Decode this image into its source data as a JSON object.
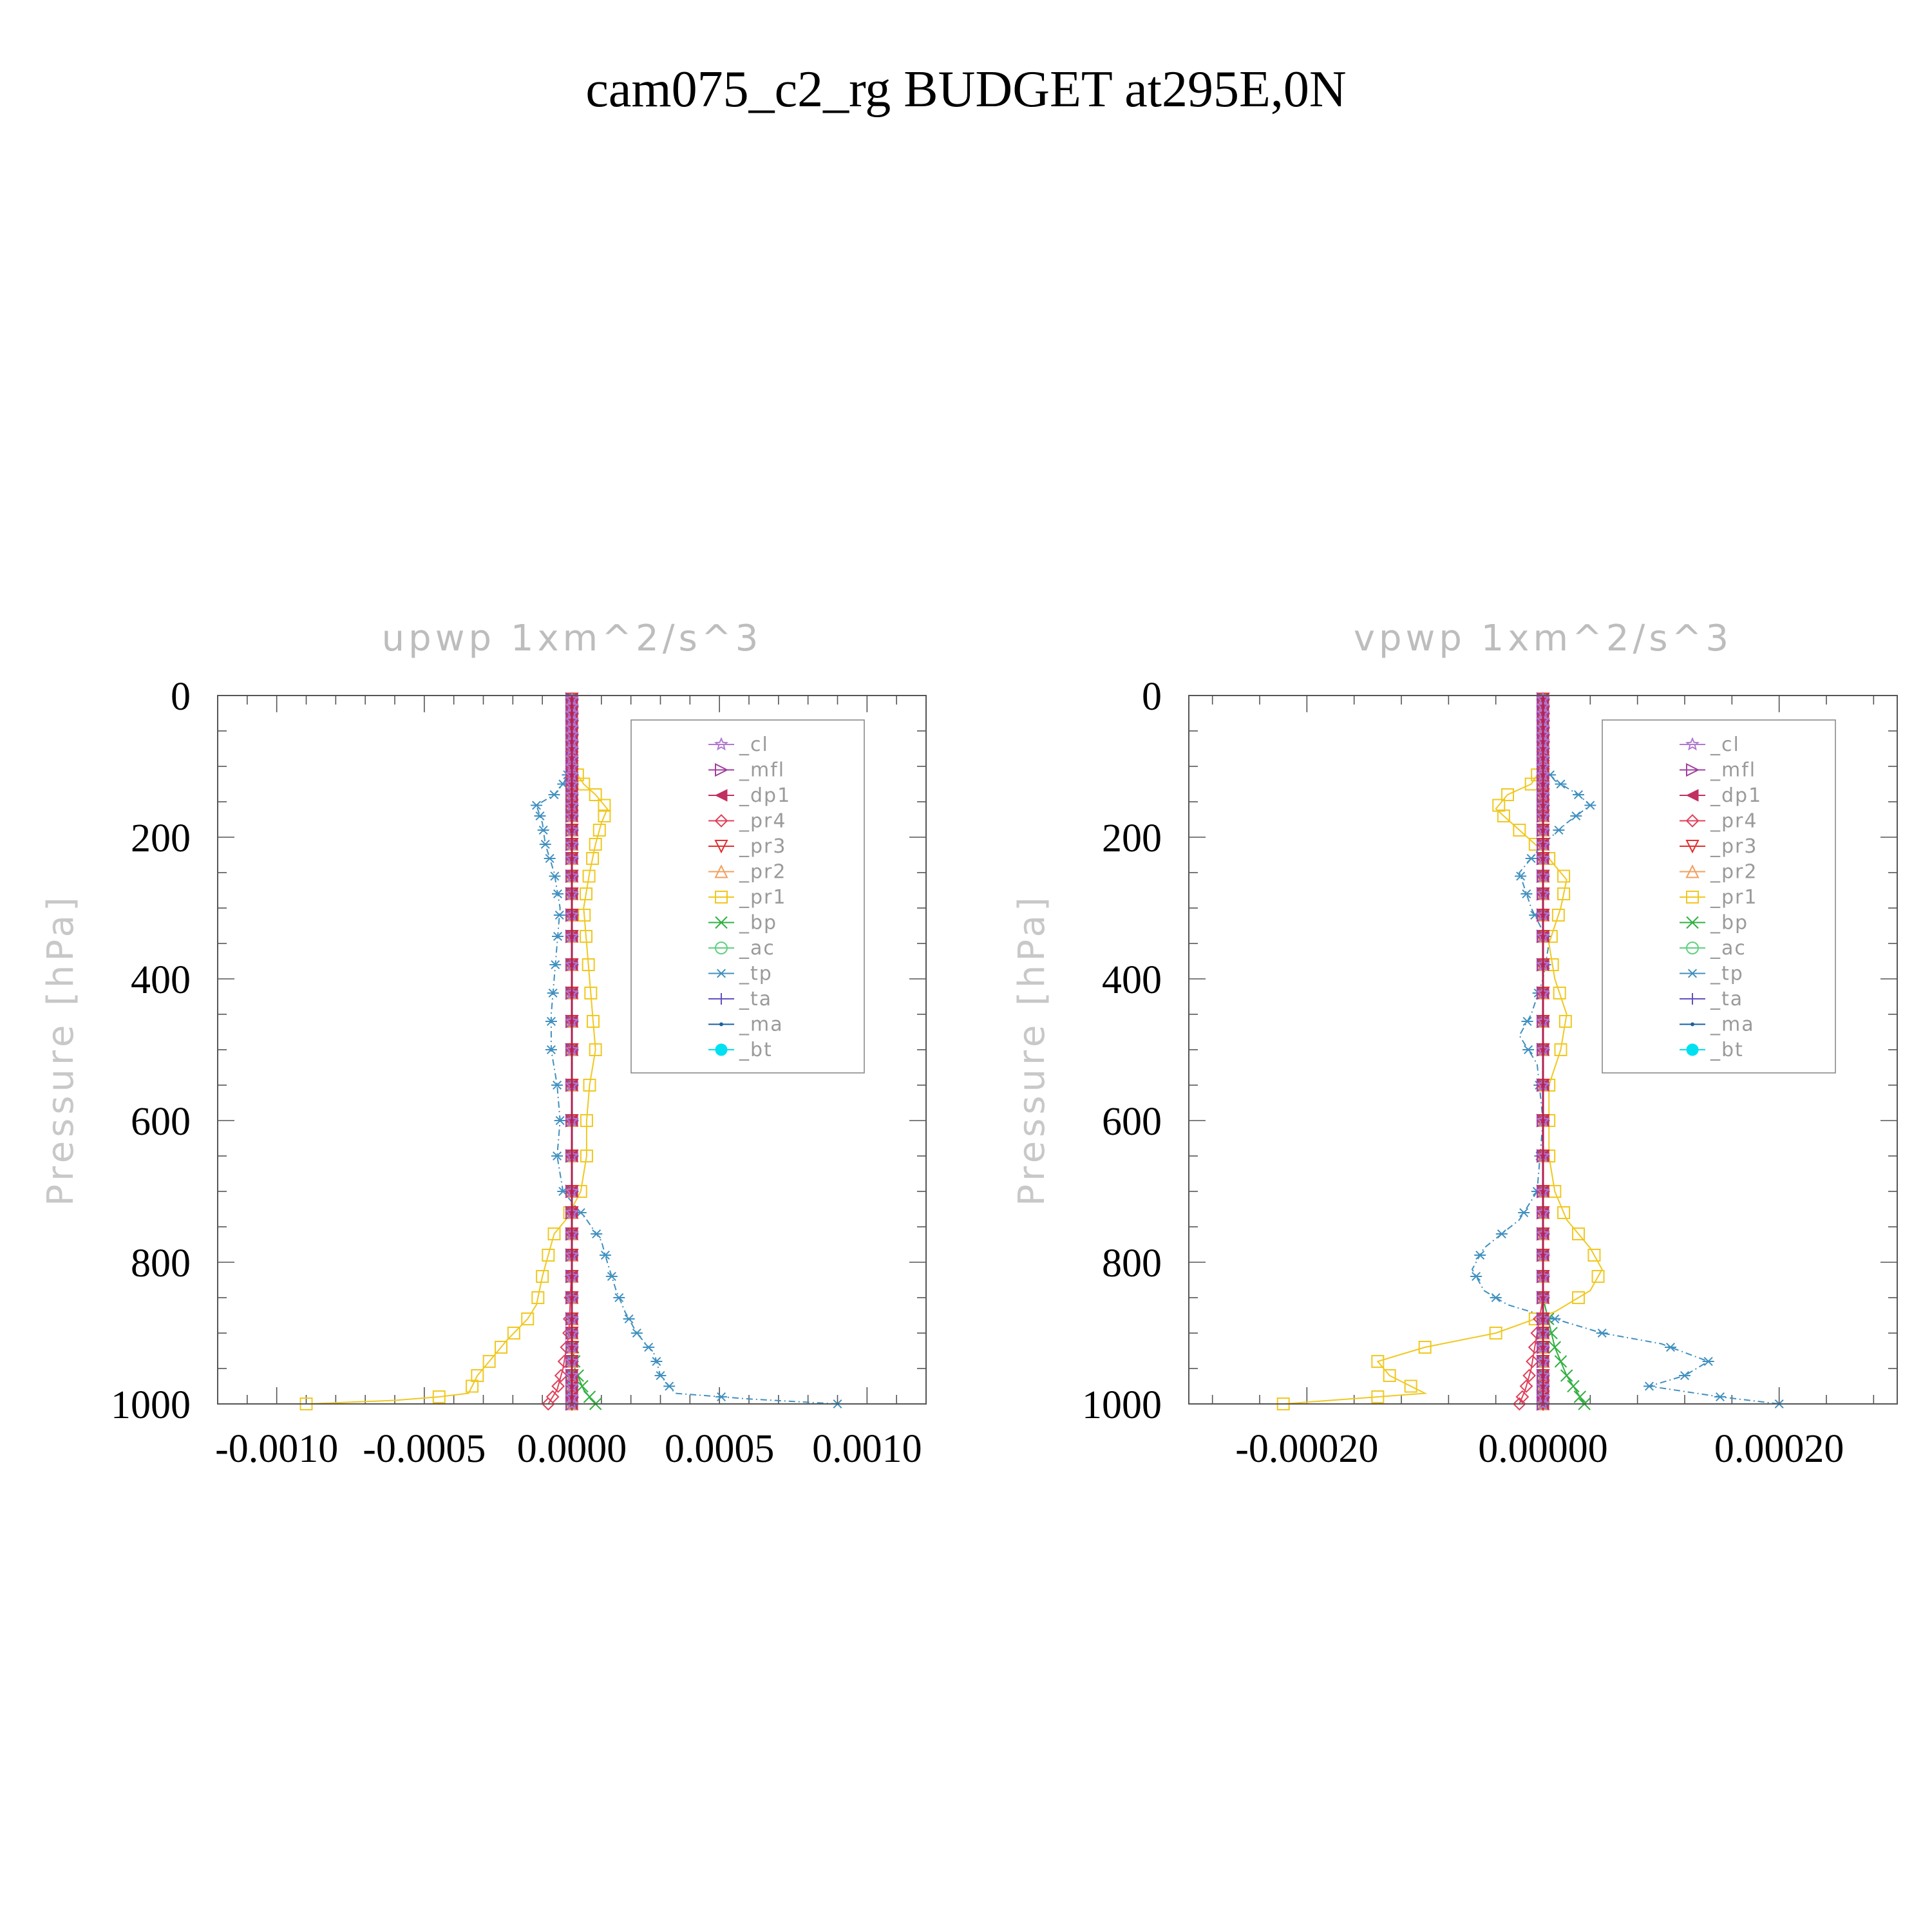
{
  "figure_title": "cam075_c2_rg  BUDGET at295E,0N",
  "chart_data": [
    {
      "type": "line",
      "title": "upwp   1xm^2/s^3",
      "xlabel": "",
      "ylabel": "Pressure  [hPa]",
      "xlim": [
        -0.0012,
        0.0012
      ],
      "ylim": [
        1000,
        0
      ],
      "xticks": [
        -0.001,
        -0.0005,
        0.0,
        0.0005,
        0.001
      ],
      "xtick_labels": [
        "-0.0010",
        "-0.0005",
        "0.0000",
        "0.0005",
        "0.0010"
      ],
      "yticks": [
        0,
        200,
        400,
        600,
        800,
        1000
      ],
      "ytick_labels": [
        "0",
        "200",
        "400",
        "600",
        "800",
        "1000"
      ],
      "grid": false,
      "legend_position": "top-right",
      "series": [
        {
          "name": "_cl",
          "color": "#b07ad0",
          "marker": "star",
          "points": [
            [
              0,
              0
            ],
            [
              0,
              1000
            ]
          ]
        },
        {
          "name": "_mfl",
          "color": "#a040a0",
          "marker": "triangle-right",
          "points": [
            [
              0,
              0
            ],
            [
              0,
              1000
            ]
          ]
        },
        {
          "name": "_dp1",
          "color": "#c03060",
          "marker": "triangle-left",
          "points": [
            [
              0,
              0
            ],
            [
              0,
              1000
            ]
          ]
        },
        {
          "name": "_pr4",
          "color": "#e0405a",
          "marker": "diamond",
          "points": [
            [
              0,
              0
            ],
            [
              0,
              800
            ],
            [
              -1e-05,
              900
            ],
            [
              -3e-05,
              950
            ],
            [
              -5e-05,
              980
            ],
            [
              -8e-05,
              1000
            ]
          ]
        },
        {
          "name": "_pr3",
          "color": "#e03030",
          "marker": "triangle-down",
          "points": [
            [
              0,
              0
            ],
            [
              0,
              1000
            ]
          ]
        },
        {
          "name": "_pr2",
          "color": "#f0a060",
          "marker": "triangle-up",
          "points": [
            [
              0,
              0
            ],
            [
              0,
              1000
            ]
          ]
        },
        {
          "name": "_pr1",
          "color": "#f0c820",
          "marker": "square",
          "points": [
            [
              0,
              100
            ],
            [
              4e-05,
              125
            ],
            [
              8e-05,
              140
            ],
            [
              0.00012,
              160
            ],
            [
              0.0001,
              180
            ],
            [
              8e-05,
              210
            ],
            [
              6e-05,
              250
            ],
            [
              4e-05,
              300
            ],
            [
              5e-05,
              350
            ],
            [
              6e-05,
              400
            ],
            [
              7e-05,
              450
            ],
            [
              8e-05,
              500
            ],
            [
              6e-05,
              550
            ],
            [
              5e-05,
              600
            ],
            [
              5e-05,
              650
            ],
            [
              3e-05,
              700
            ],
            [
              -2e-05,
              740
            ],
            [
              -6e-05,
              760
            ],
            [
              -8e-05,
              790
            ],
            [
              -0.0001,
              820
            ],
            [
              -0.00012,
              860
            ],
            [
              -0.00015,
              880
            ],
            [
              -0.00022,
              910
            ],
            [
              -0.00028,
              940
            ],
            [
              -0.00032,
              960
            ],
            [
              -0.00035,
              985
            ],
            [
              -0.00045,
              990
            ],
            [
              -0.0006,
              995
            ],
            [
              -0.0009,
              1000
            ]
          ]
        },
        {
          "name": "_bp",
          "color": "#30b040",
          "marker": "x",
          "points": [
            [
              0,
              0
            ],
            [
              0,
              900
            ],
            [
              1e-05,
              950
            ],
            [
              4e-05,
              980
            ],
            [
              8e-05,
              1000
            ]
          ]
        },
        {
          "name": "_ac",
          "color": "#60d080",
          "marker": "circle",
          "points": [
            [
              0,
              0
            ],
            [
              0,
              1000
            ]
          ]
        },
        {
          "name": "_tp",
          "color": "#4090c0",
          "marker": "asterisk",
          "points": [
            [
              0,
              100
            ],
            [
              -3e-05,
              125
            ],
            [
              -6e-05,
              140
            ],
            [
              -0.00012,
              155
            ],
            [
              -0.0001,
              180
            ],
            [
              -9e-05,
              210
            ],
            [
              -6e-05,
              250
            ],
            [
              -4e-05,
              300
            ],
            [
              -5e-05,
              350
            ],
            [
              -6e-05,
              400
            ],
            [
              -7e-05,
              450
            ],
            [
              -7e-05,
              500
            ],
            [
              -5e-05,
              550
            ],
            [
              -4e-05,
              600
            ],
            [
              -5e-05,
              650
            ],
            [
              -3e-05,
              700
            ],
            [
              5e-05,
              740
            ],
            [
              0.0001,
              770
            ],
            [
              0.00012,
              800
            ],
            [
              0.00015,
              840
            ],
            [
              0.00018,
              870
            ],
            [
              0.00022,
              900
            ],
            [
              0.00028,
              930
            ],
            [
              0.0003,
              960
            ],
            [
              0.00035,
              985
            ],
            [
              0.0006,
              993
            ],
            [
              0.0009,
              1000
            ]
          ]
        },
        {
          "name": "_ta",
          "color": "#6050c0",
          "marker": "plus",
          "points": [
            [
              0,
              0
            ],
            [
              0,
              1000
            ]
          ]
        },
        {
          "name": "_ma",
          "color": "#1a60a0",
          "marker": "dot",
          "points": [
            [
              0,
              0
            ],
            [
              0,
              1000
            ]
          ]
        },
        {
          "name": "_bt",
          "color": "#00e0f0",
          "marker": "filled-circle",
          "points": [
            [
              0,
              0
            ],
            [
              0,
              1000
            ]
          ]
        }
      ]
    },
    {
      "type": "line",
      "title": "vpwp   1xm^2/s^3",
      "xlabel": "",
      "ylabel": "Pressure  [hPa]",
      "xlim": [
        -0.0003,
        0.0003
      ],
      "ylim": [
        1000,
        0
      ],
      "xticks": [
        -0.0002,
        0.0,
        0.0002
      ],
      "xtick_labels": [
        "-0.00020",
        "0.00000",
        "0.00020"
      ],
      "yticks": [
        0,
        200,
        400,
        600,
        800,
        1000
      ],
      "ytick_labels": [
        "0",
        "200",
        "400",
        "600",
        "800",
        "1000"
      ],
      "grid": false,
      "legend_position": "top-right",
      "series": [
        {
          "name": "_cl",
          "color": "#b07ad0",
          "marker": "star",
          "points": [
            [
              0,
              0
            ],
            [
              0,
              1000
            ]
          ]
        },
        {
          "name": "_mfl",
          "color": "#a040a0",
          "marker": "triangle-right",
          "points": [
            [
              0,
              0
            ],
            [
              0,
              1000
            ]
          ]
        },
        {
          "name": "_dp1",
          "color": "#c03060",
          "marker": "triangle-left",
          "points": [
            [
              0,
              0
            ],
            [
              0,
              1000
            ]
          ]
        },
        {
          "name": "_pr4",
          "color": "#e0405a",
          "marker": "diamond",
          "points": [
            [
              0,
              0
            ],
            [
              0,
              850
            ],
            [
              -5e-06,
              900
            ],
            [
              -1e-05,
              950
            ],
            [
              -1.5e-05,
              980
            ],
            [
              -2e-05,
              1000
            ]
          ]
        },
        {
          "name": "_pr3",
          "color": "#e03030",
          "marker": "triangle-down",
          "points": [
            [
              0,
              0
            ],
            [
              0,
              1000
            ]
          ]
        },
        {
          "name": "_pr2",
          "color": "#f0a060",
          "marker": "triangle-up",
          "points": [
            [
              0,
              0
            ],
            [
              0,
              1000
            ]
          ]
        },
        {
          "name": "_pr1",
          "color": "#f0c820",
          "marker": "square",
          "points": [
            [
              0,
              100
            ],
            [
              -1e-05,
              125
            ],
            [
              -3e-05,
              140
            ],
            [
              -4e-05,
              160
            ],
            [
              -2e-05,
              190
            ],
            [
              0,
              220
            ],
            [
              2e-05,
              260
            ],
            [
              1.5e-05,
              300
            ],
            [
              5e-06,
              350
            ],
            [
              1e-05,
              400
            ],
            [
              2e-05,
              450
            ],
            [
              1.5e-05,
              500
            ],
            [
              5e-06,
              550
            ],
            [
              5e-06,
              600
            ],
            [
              5e-06,
              650
            ],
            [
              1e-05,
              700
            ],
            [
              2e-05,
              740
            ],
            [
              4e-05,
              780
            ],
            [
              5e-05,
              810
            ],
            [
              4e-05,
              840
            ],
            [
              1e-05,
              870
            ],
            [
              -4e-05,
              900
            ],
            [
              -0.0001,
              920
            ],
            [
              -0.00014,
              940
            ],
            [
              -0.00013,
              960
            ],
            [
              -0.0001,
              985
            ],
            [
              -0.00018,
              995
            ],
            [
              -0.00022,
              1000
            ]
          ]
        },
        {
          "name": "_bp",
          "color": "#30b040",
          "marker": "x",
          "points": [
            [
              0,
              0
            ],
            [
              0,
              850
            ],
            [
              1e-05,
              920
            ],
            [
              2e-05,
              960
            ],
            [
              3.5e-05,
              1000
            ]
          ]
        },
        {
          "name": "_ac",
          "color": "#60d080",
          "marker": "circle",
          "points": [
            [
              0,
              0
            ],
            [
              0,
              1000
            ]
          ]
        },
        {
          "name": "_tp",
          "color": "#4090c0",
          "marker": "asterisk",
          "points": [
            [
              0,
              100
            ],
            [
              1e-05,
              120
            ],
            [
              3e-05,
              140
            ],
            [
              4e-05,
              155
            ],
            [
              2e-05,
              180
            ],
            [
              0,
              210
            ],
            [
              -2e-05,
              250
            ],
            [
              -1e-05,
              300
            ],
            [
              5e-06,
              350
            ],
            [
              0,
              400
            ],
            [
              -1e-05,
              450
            ],
            [
              -2e-05,
              480
            ],
            [
              -5e-06,
              520
            ],
            [
              0,
              600
            ],
            [
              -5e-06,
              700
            ],
            [
              -2e-05,
              740
            ],
            [
              -5e-05,
              780
            ],
            [
              -6e-05,
              810
            ],
            [
              -5e-05,
              840
            ],
            [
              -3e-05,
              860
            ],
            [
              1e-05,
              880
            ],
            [
              5e-05,
              900
            ],
            [
              0.0001,
              915
            ],
            [
              0.00014,
              940
            ],
            [
              0.00012,
              960
            ],
            [
              9e-05,
              975
            ],
            [
              0.00015,
              990
            ],
            [
              0.0002,
              1000
            ]
          ]
        },
        {
          "name": "_ta",
          "color": "#6050c0",
          "marker": "plus",
          "points": [
            [
              0,
              0
            ],
            [
              0,
              1000
            ]
          ]
        },
        {
          "name": "_ma",
          "color": "#1a60a0",
          "marker": "dot",
          "points": [
            [
              0,
              0
            ],
            [
              0,
              1000
            ]
          ]
        },
        {
          "name": "_bt",
          "color": "#00e0f0",
          "marker": "filled-circle",
          "points": [
            [
              0,
              0
            ],
            [
              0,
              1000
            ]
          ]
        }
      ]
    }
  ]
}
